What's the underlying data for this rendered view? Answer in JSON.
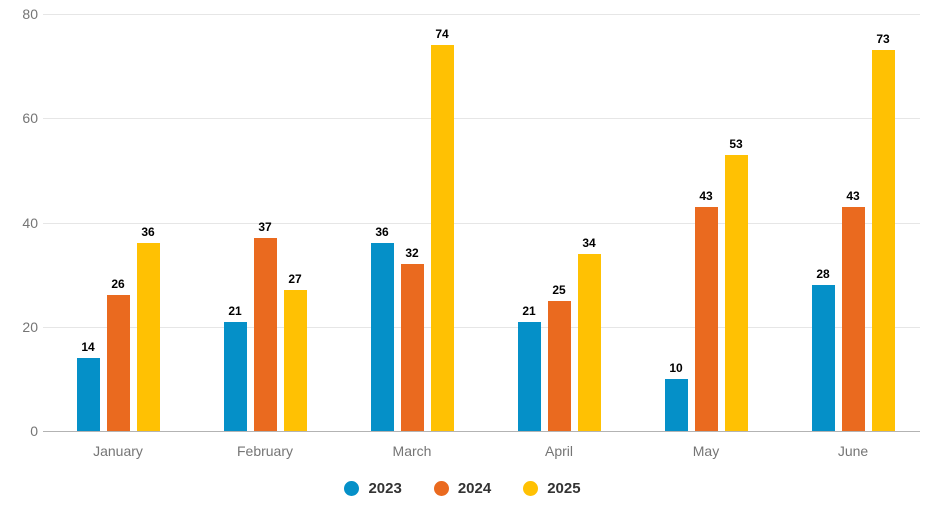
{
  "chart_data": {
    "type": "bar",
    "categories": [
      "January",
      "February",
      "March",
      "April",
      "May",
      "June"
    ],
    "series": [
      {
        "name": "2023",
        "color": "#0590C8",
        "values": [
          14,
          21,
          36,
          21,
          10,
          28
        ]
      },
      {
        "name": "2024",
        "color": "#EA6A1F",
        "values": [
          26,
          37,
          32,
          25,
          43,
          43
        ]
      },
      {
        "name": "2025",
        "color": "#FFC103",
        "values": [
          36,
          27,
          74,
          34,
          53,
          73
        ]
      }
    ],
    "title": "",
    "xlabel": "",
    "ylabel": "",
    "ylim": [
      0,
      80
    ],
    "yticks": [
      0,
      20,
      40,
      60,
      80
    ],
    "grid": true,
    "legend_position": "bottom",
    "value_labels": true
  },
  "colors": {
    "background": "#ffffff",
    "gridline": "#e6e6e6",
    "baseline": "#b3b3b3",
    "axis_text": "#757575",
    "value_label_text": "#000000",
    "legend_text": "#333333"
  }
}
